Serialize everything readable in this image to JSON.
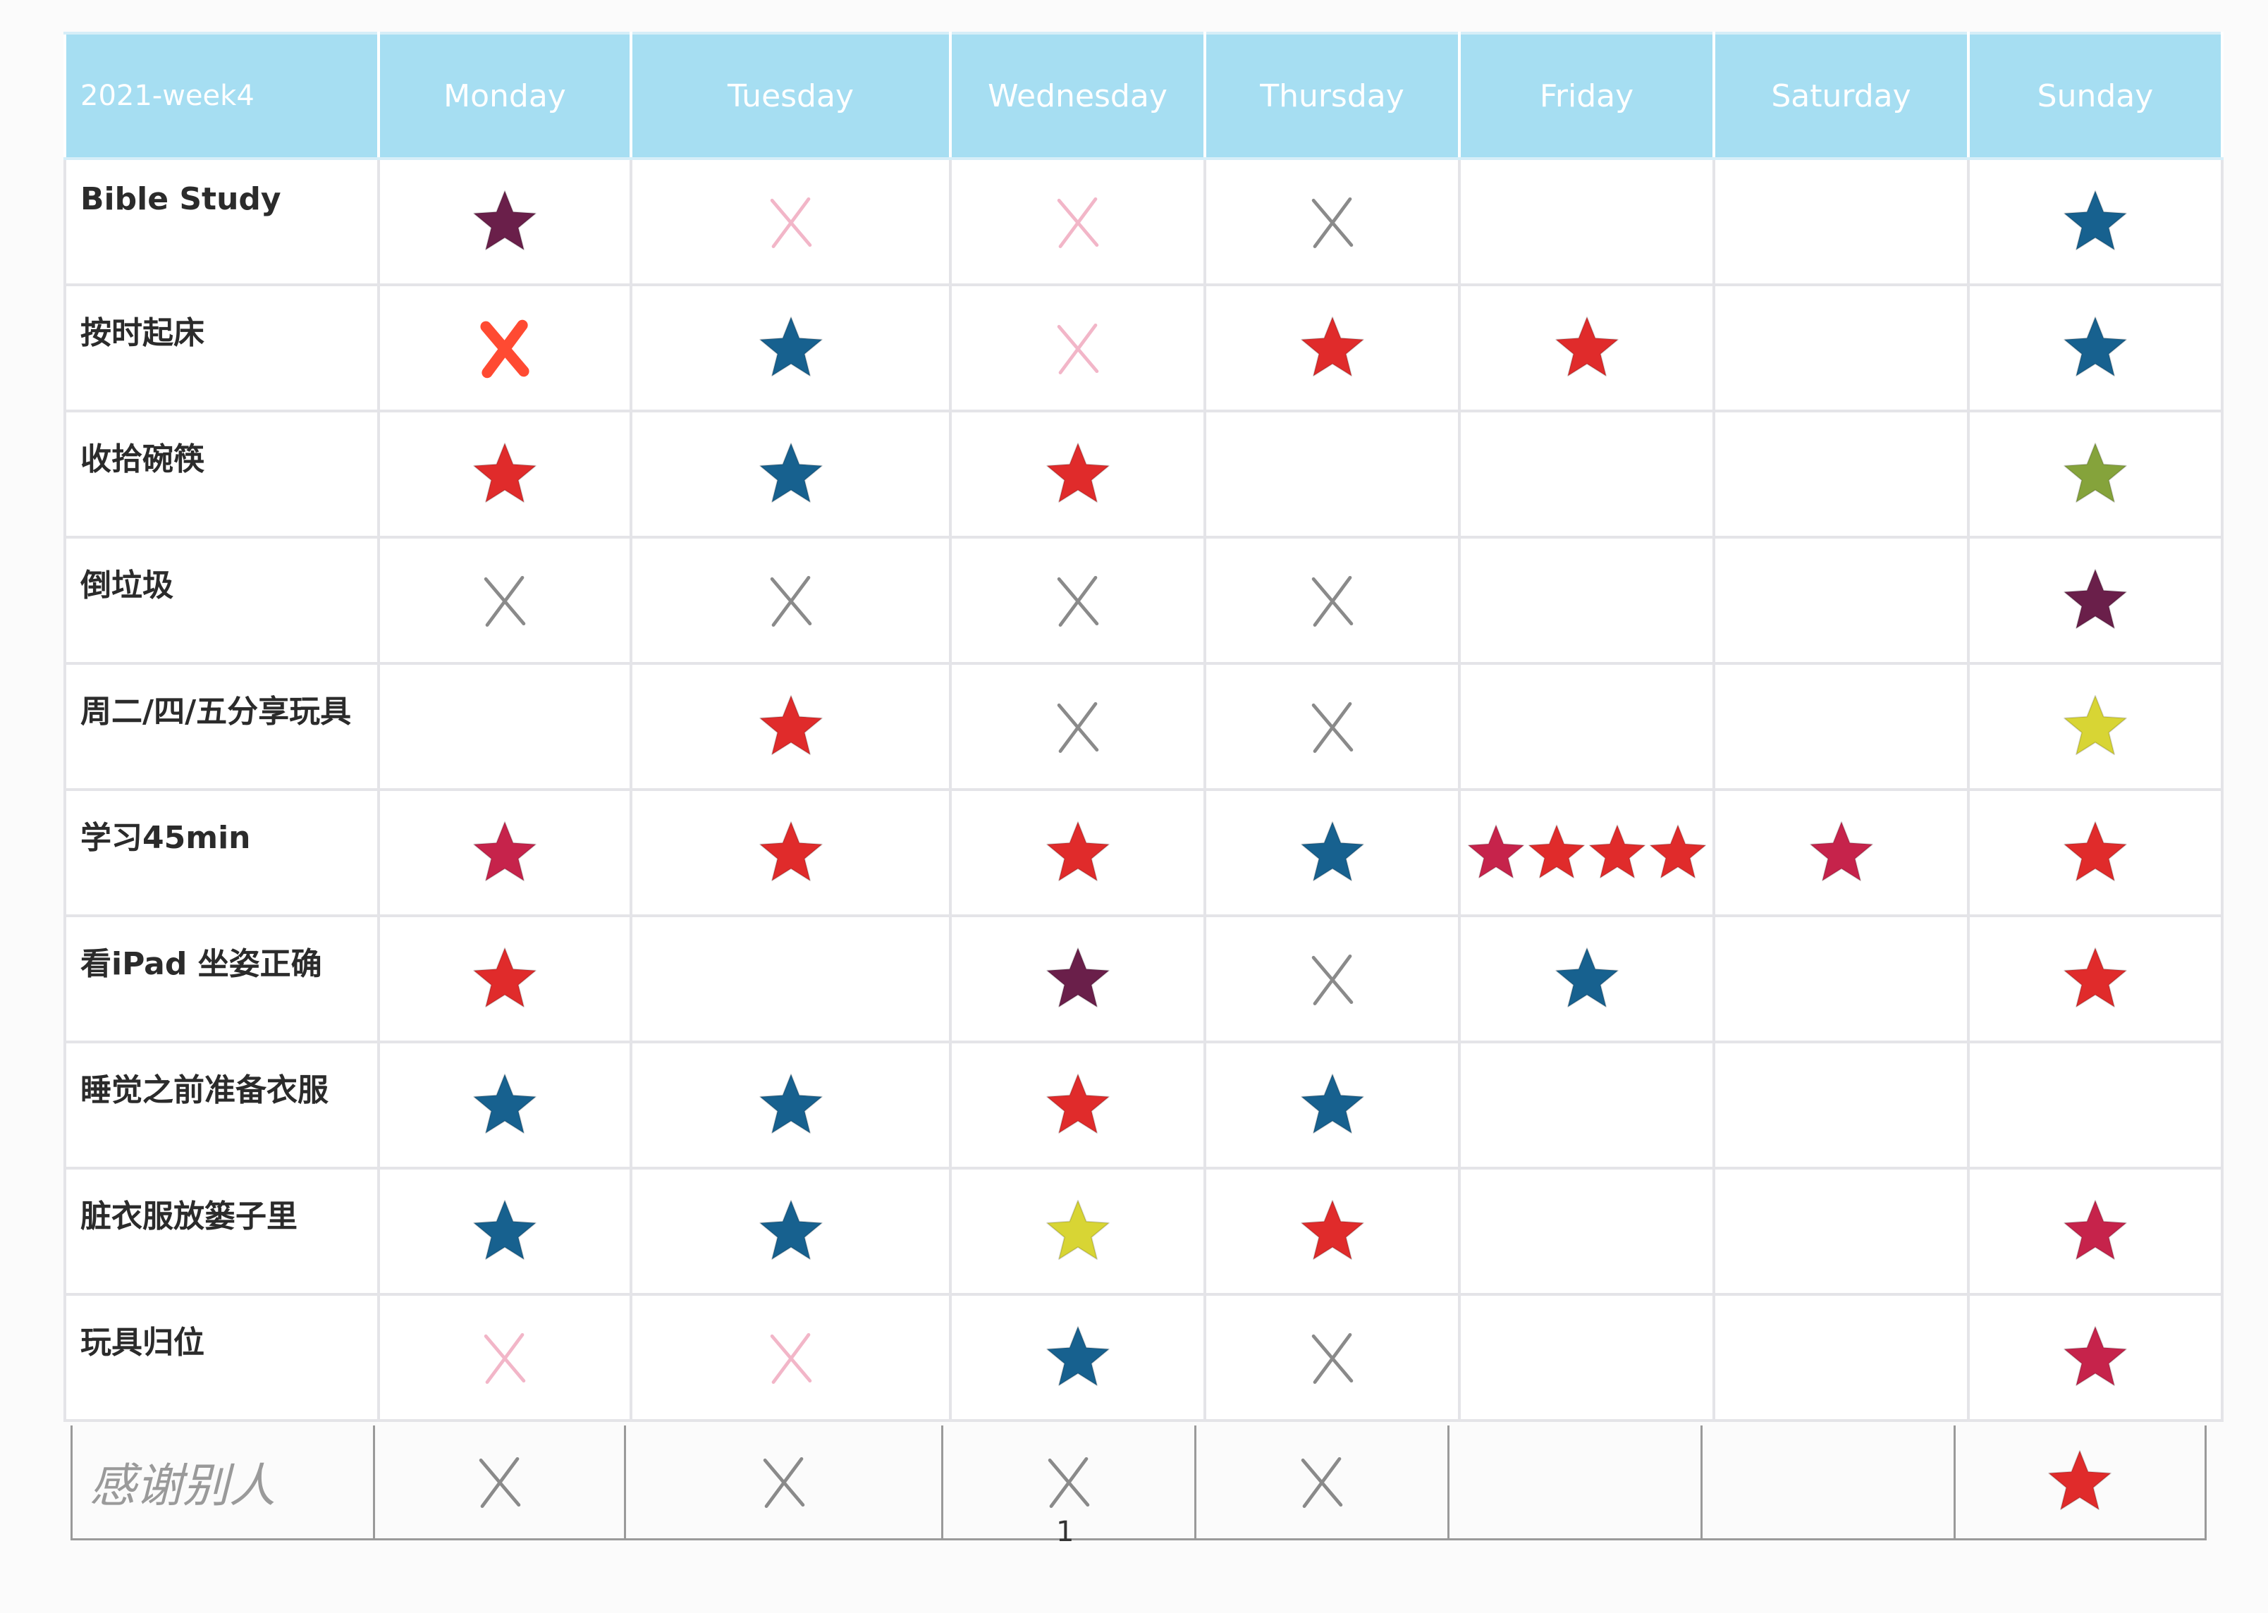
{
  "colors": {
    "header_bg": "#a6def2",
    "red": "#e02b2b",
    "blue": "#17618f",
    "crimson": "#c6234b",
    "purple": "#6a1f4a",
    "green": "#85a33b",
    "yellow": "#d8d534",
    "pencil": "#8a8a8a",
    "pink": "#f2b6c8",
    "orange": "#ff4a32"
  },
  "table": {
    "corner_label": "2021-week4",
    "days": [
      "Monday",
      "Tuesday",
      "Wednesday",
      "Thursday",
      "Friday",
      "Saturday",
      "Sunday"
    ],
    "rows": [
      {
        "label": "Bible Study",
        "marks": [
          [
            "purple-star"
          ],
          [
            "pink-x"
          ],
          [
            "pink-x"
          ],
          [
            "gray-x"
          ],
          [],
          [],
          [
            "blue-star"
          ]
        ]
      },
      {
        "label": "按时起床",
        "marks": [
          [
            "orange-x"
          ],
          [
            "blue-star"
          ],
          [
            "pink-x"
          ],
          [
            "red-star"
          ],
          [
            "red-star"
          ],
          [],
          [
            "blue-star"
          ]
        ]
      },
      {
        "label": "收拾碗筷",
        "marks": [
          [
            "red-star"
          ],
          [
            "blue-star"
          ],
          [
            "red-star"
          ],
          [],
          [],
          [],
          [
            "green-star"
          ]
        ]
      },
      {
        "label": "倒垃圾",
        "marks": [
          [
            "gray-x"
          ],
          [
            "gray-x"
          ],
          [
            "gray-x"
          ],
          [
            "gray-x"
          ],
          [],
          [],
          [
            "purple-star"
          ]
        ]
      },
      {
        "label": "周二/四/五分享玩具",
        "marks": [
          [],
          [
            "red-star"
          ],
          [
            "gray-x"
          ],
          [
            "gray-x"
          ],
          [],
          [],
          [
            "yellow-star"
          ]
        ]
      },
      {
        "label": "学习45min",
        "marks": [
          [
            "crimson-star"
          ],
          [
            "red-star"
          ],
          [
            "red-star"
          ],
          [
            "blue-star"
          ],
          [
            "crimson-star",
            "red-star",
            "red-star",
            "red-star"
          ],
          [
            "crimson-star"
          ],
          [
            "red-star"
          ]
        ]
      },
      {
        "label": "看iPad 坐姿正确",
        "marks": [
          [
            "red-star"
          ],
          [],
          [
            "purple-star"
          ],
          [
            "gray-x"
          ],
          [
            "blue-star"
          ],
          [],
          [
            "red-star"
          ]
        ]
      },
      {
        "label": "睡觉之前准备衣服",
        "marks": [
          [
            "blue-star"
          ],
          [
            "blue-star"
          ],
          [
            "red-star"
          ],
          [
            "blue-star"
          ],
          [],
          [],
          []
        ]
      },
      {
        "label": "脏衣服放篓子里",
        "marks": [
          [
            "blue-star"
          ],
          [
            "blue-star"
          ],
          [
            "yellow-star"
          ],
          [
            "red-star"
          ],
          [],
          [],
          [
            "crimson-star"
          ]
        ]
      },
      {
        "label": "玩具归位",
        "marks": [
          [
            "pink-x"
          ],
          [
            "pink-x"
          ],
          [
            "blue-star"
          ],
          [
            "gray-x"
          ],
          [],
          [],
          [
            "crimson-star"
          ]
        ]
      }
    ]
  },
  "handwritten_row": {
    "label": "感谢别人",
    "marks": [
      [
        "gray-x"
      ],
      [
        "gray-x"
      ],
      [
        "gray-x"
      ],
      [
        "gray-x"
      ],
      [],
      [],
      [
        "red-star"
      ]
    ]
  },
  "page_number": "1"
}
